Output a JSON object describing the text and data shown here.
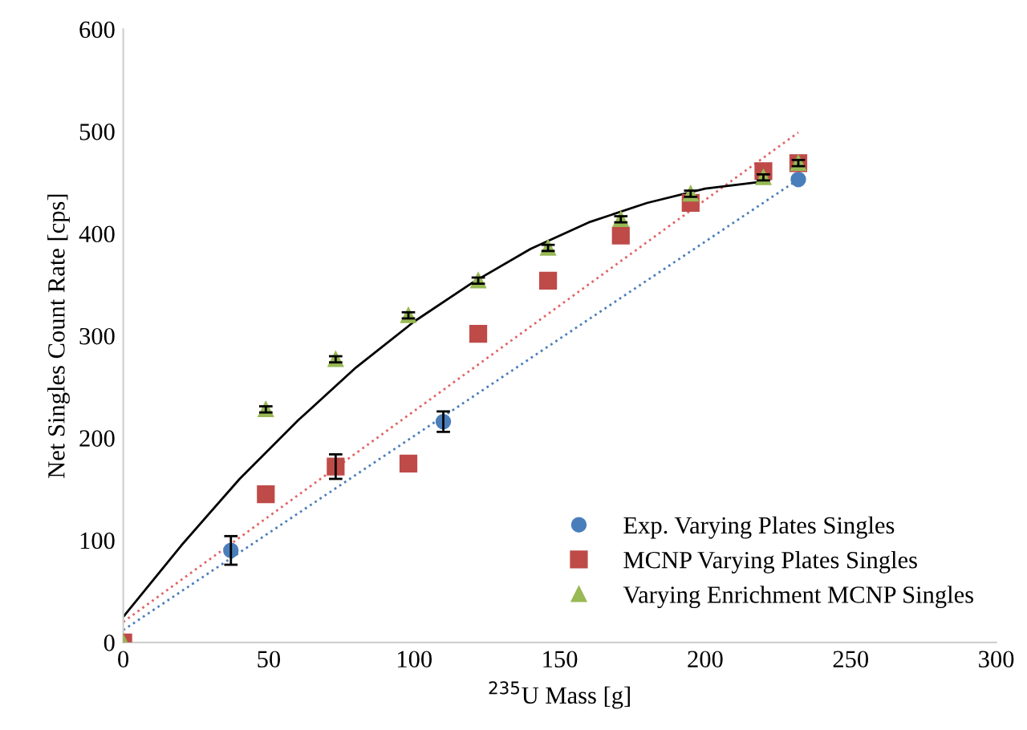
{
  "chart_data": {
    "type": "scatter",
    "xlabel": "$^{235}$U Mass [g]",
    "ylabel": "Net Singles Count Rate [cps]",
    "xlim": [
      0,
      300
    ],
    "xticks": [
      0,
      50,
      100,
      150,
      200,
      250,
      300
    ],
    "ylim": [
      0,
      600
    ],
    "yticks": [
      0,
      100,
      200,
      300,
      400,
      500,
      600
    ],
    "grid": false,
    "legend": "bottom right",
    "series": [
      {
        "name": "Exp. Varying Plates Singles",
        "color": "#4a7ebb",
        "marker": "circle",
        "x": [
          37,
          110,
          232
        ],
        "values": [
          90,
          216,
          453
        ],
        "errors": [
          14,
          10,
          null
        ]
      },
      {
        "name": "MCNP Varying Plates Singles",
        "color": "#be4b48",
        "marker": "square",
        "x": [
          0,
          49,
          73,
          98,
          122,
          146,
          171,
          195,
          220,
          232
        ],
        "values": [
          0,
          145,
          172,
          175,
          302,
          354,
          398,
          430,
          461,
          469
        ],
        "errors": [
          null,
          null,
          12,
          null,
          null,
          null,
          null,
          null,
          null,
          null
        ]
      },
      {
        "name": "Varying Enrichment MCNP Singles",
        "color": "#98b954",
        "marker": "triangle",
        "x": [
          0,
          49,
          73,
          98,
          122,
          146,
          171,
          195,
          220,
          232
        ],
        "values": [
          0,
          228,
          277,
          320,
          354,
          386,
          414,
          439,
          455,
          469
        ],
        "errors": [
          null,
          3,
          3,
          3,
          3,
          3,
          3,
          3,
          3,
          3
        ]
      },
      {
        "type": "line",
        "color": "#4a7ebb",
        "line_style": "dotted",
        "marker": "none",
        "x": [
          0,
          232
        ],
        "values": [
          12,
          453
        ]
      },
      {
        "type": "line",
        "color": "#e06666",
        "line_style": "dotted",
        "marker": "none",
        "x": [
          0,
          232
        ],
        "values": [
          20,
          499
        ]
      },
      {
        "type": "line",
        "color": "#000000",
        "line_style": "solid",
        "marker": "none",
        "x": [
          0,
          20,
          40,
          60,
          80,
          100,
          120,
          140,
          160,
          180,
          200,
          220
        ],
        "values": [
          25,
          95,
          160,
          217,
          269,
          314,
          352,
          385,
          411,
          430,
          444,
          451
        ]
      }
    ]
  }
}
